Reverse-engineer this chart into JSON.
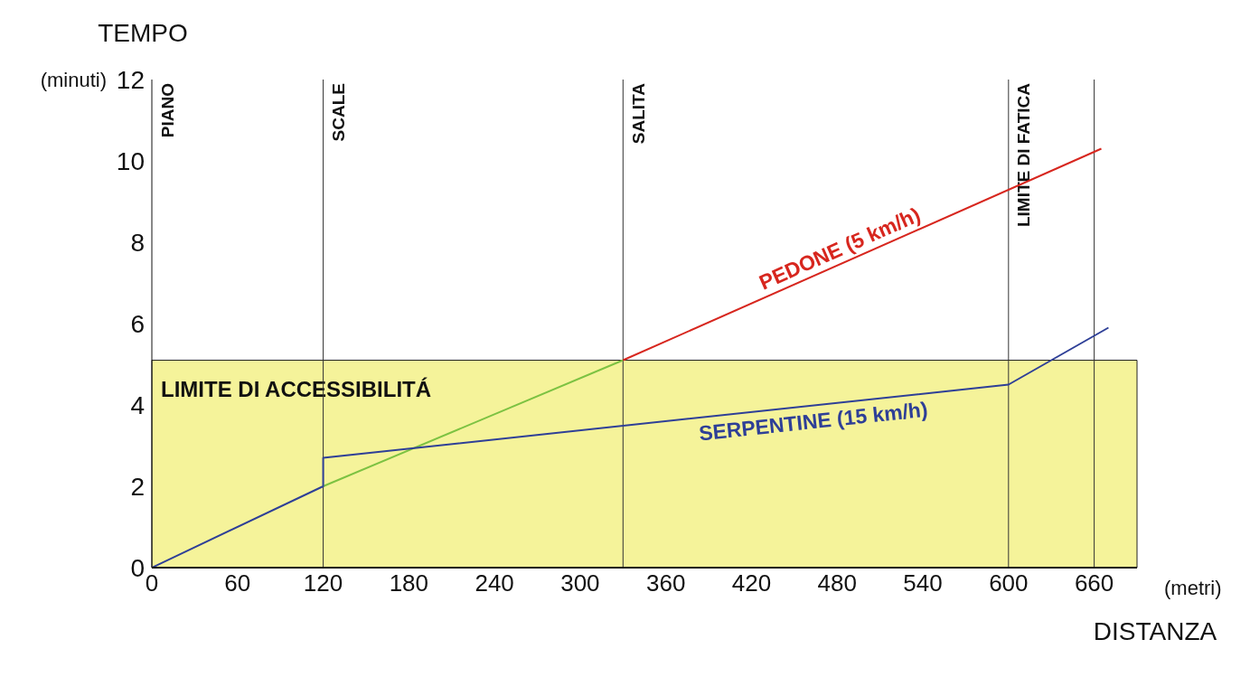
{
  "chart_data": {
    "type": "line",
    "ylabel": "TEMPO",
    "xlabel": "DISTANZA",
    "annotations": [
      "(minuti)",
      "(metri)",
      "PIANO"
    ],
    "xlim": [
      0,
      690
    ],
    "xticks": [
      0,
      60,
      120,
      180,
      240,
      300,
      360,
      420,
      480,
      540,
      600,
      660
    ],
    "ylim": [
      0,
      12
    ],
    "yticks": [
      0,
      2,
      4,
      6,
      8,
      10,
      12
    ],
    "grid": false,
    "legend": false,
    "marker": "none",
    "line_style": "solid",
    "series": [
      {
        "color": "#7cc242",
        "x": [
          120,
          330
        ],
        "values": [
          2,
          5.1
        ]
      },
      {
        "name": "PEDONE (5 km/h)",
        "color": "#d7261e",
        "x": [
          330,
          665
        ],
        "values": [
          5.1,
          10.3
        ]
      },
      {
        "name": "SERPENTINE (15 km/h)",
        "color": "#2e3f97",
        "x": [
          0,
          120,
          120,
          600,
          670
        ],
        "values": [
          0,
          2,
          2.7,
          4.5,
          5.9
        ]
      }
    ],
    "ref_lines": [
      {
        "axis": "x",
        "value": 120,
        "label": "SCALE",
        "color": "#333333"
      },
      {
        "axis": "x",
        "value": 330,
        "label": "SALITA",
        "color": "#333333"
      },
      {
        "axis": "x",
        "value": 600,
        "label": "LIMITE DI FATICA",
        "color": "#333333"
      },
      {
        "axis": "x",
        "value": 660,
        "label": null,
        "color": "#333333"
      }
    ],
    "bands": [
      {
        "axis": "y",
        "from": 0,
        "to": 5.1,
        "label": "LIMITE DI ACCESSIBILITÁ",
        "color": "#f5f39a"
      }
    ]
  }
}
